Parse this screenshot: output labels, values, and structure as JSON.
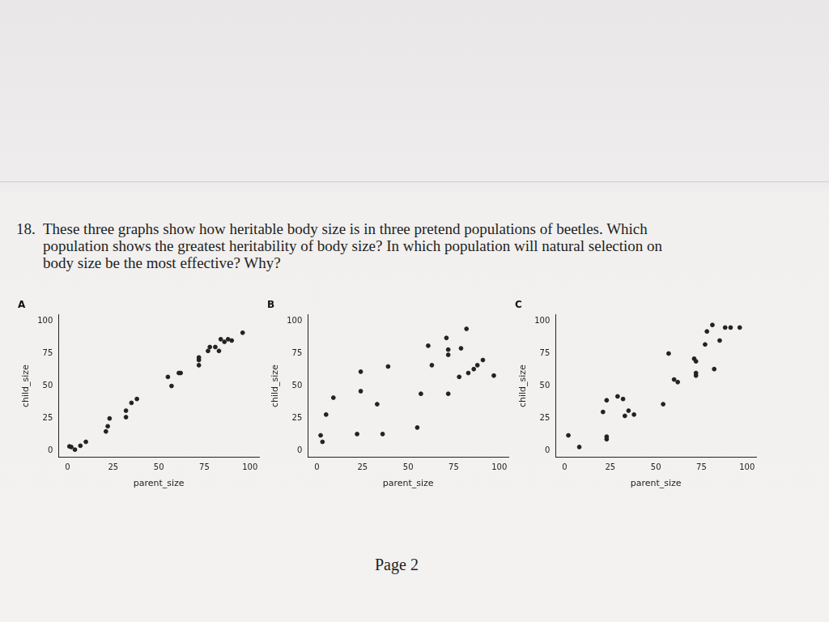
{
  "question": {
    "number": "18.",
    "lines": [
      "These three graphs show how heritable body size is in three pretend populations of beetles. Which",
      "population shows the greatest heritability of body size? In which population will natural selection on",
      "body size be the most effective? Why?"
    ]
  },
  "chart_data": [
    {
      "type": "scatter",
      "title": "A",
      "x_label": "parent_size",
      "y_label": "child_size",
      "x": [
        1,
        2,
        4,
        7,
        10,
        21,
        22,
        23,
        32,
        32,
        35,
        38,
        55,
        57,
        61,
        62,
        72,
        72,
        72,
        77,
        78,
        81,
        83,
        84,
        86,
        88,
        90,
        96
      ],
      "values": [
        3.5,
        3,
        1,
        4,
        7,
        15,
        19,
        25,
        26,
        31,
        37,
        40,
        57,
        50,
        60,
        60,
        72,
        70,
        66,
        77,
        80,
        80,
        77,
        86,
        84,
        86,
        85,
        91
      ],
      "color": "#222222",
      "marker": "circle",
      "xlim": [
        -5,
        105
      ],
      "ylim": [
        -5,
        105
      ],
      "xticks": [
        0,
        25,
        50,
        75,
        100
      ],
      "yticks": [
        0,
        25,
        50,
        75,
        100
      ],
      "grid": false
    },
    {
      "type": "scatter",
      "title": "B",
      "x_label": "parent_size",
      "y_label": "child_size",
      "x": [
        2,
        3,
        5,
        9,
        22,
        24,
        24,
        33,
        36,
        39,
        55,
        57,
        61,
        63,
        71,
        72,
        72,
        72,
        78,
        79,
        82,
        83,
        86,
        88,
        91,
        97
      ],
      "values": [
        12,
        7,
        28,
        41,
        13,
        46,
        61,
        36,
        13,
        65,
        18,
        44,
        81,
        66,
        87,
        78,
        74,
        44,
        57,
        79,
        94,
        60,
        63,
        66,
        70,
        58
      ],
      "color": "#222222",
      "marker": "circle",
      "xlim": [
        -5,
        105
      ],
      "ylim": [
        -5,
        105
      ],
      "xticks": [
        0,
        25,
        50,
        75,
        100
      ],
      "yticks": [
        0,
        25,
        50,
        75,
        100
      ],
      "grid": false
    },
    {
      "type": "scatter",
      "title": "C",
      "x_label": "parent_size",
      "y_label": "child_size",
      "x": [
        2,
        8,
        21,
        23,
        23,
        23,
        29,
        32,
        33,
        35,
        38,
        54,
        57,
        60,
        62,
        71,
        72,
        72,
        72,
        77,
        78,
        81,
        82,
        85,
        88,
        91,
        96
      ],
      "values": [
        12,
        3,
        30,
        39,
        11,
        9,
        42,
        40,
        27,
        31,
        28,
        36,
        75,
        55,
        53,
        71,
        69,
        60,
        58,
        82,
        92,
        97,
        63,
        85,
        95,
        95,
        95
      ],
      "color": "#222222",
      "marker": "circle",
      "xlim": [
        -5,
        105
      ],
      "ylim": [
        -5,
        105
      ],
      "xticks": [
        0,
        25,
        50,
        75,
        100
      ],
      "yticks": [
        0,
        25,
        50,
        75,
        100
      ],
      "grid": false
    }
  ],
  "footer": "Page 2"
}
